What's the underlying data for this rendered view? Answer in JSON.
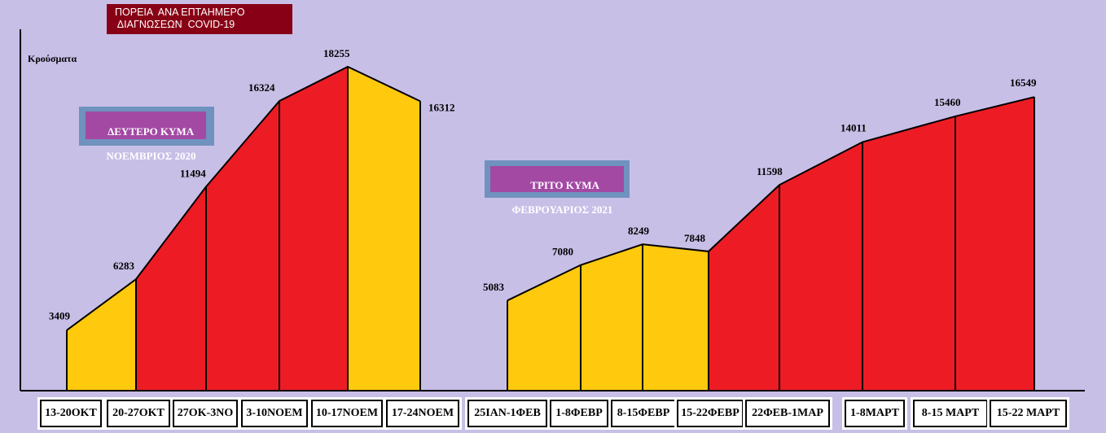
{
  "title_lines": [
    "ΠΟΡΕΙΑ  ΑΝΑ ΕΠΤΑΗΜΕΡΟ",
    " ΔΙΑΓΝΩΣΕΩΝ  COVID-19"
  ],
  "ylabel": "Κρούσματα",
  "annotations": [
    {
      "lines": [
        "ΔΕΥΤΕΡΟ ΚΥΜΑ",
        "ΝΟΕΜΒΡΙΟΣ 2020"
      ]
    },
    {
      "lines": [
        "  ΤΡΙΤΟ ΚΥΜΑ",
        "ΦΕΒΡΟΥΑΡΙΟΣ 2021"
      ]
    }
  ],
  "colors": {
    "background": "#c8bfe7",
    "yellow": "#ffc90e",
    "red": "#ed1c24",
    "title_bg": "#880015",
    "ann_outer": "#7092be",
    "ann_inner": "#a349a4"
  },
  "chart_data": {
    "type": "area",
    "ylabel": "Κρούσματα",
    "categories": [
      "13-20ΟΚΤ",
      "20-27ΟΚΤ",
      "27ΟΚ-3ΝΟ",
      "3-10ΝΟΕΜ",
      "10-17ΝΟΕΜ",
      "17-24ΝΟΕΜ",
      "25ΙΑΝ-1ΦΕΒ",
      "1-8ΦΕΒΡ",
      "8-15ΦΕΒΡ",
      "15-22ΦΕΒΡ",
      "22ΦΕΒ-1ΜΑΡ",
      "1-8ΜΑΡΤ",
      "8-15 ΜΑΡΤ",
      "15-22 ΜΑΡΤ"
    ],
    "values": [
      3409,
      6283,
      11494,
      16324,
      18255,
      16312,
      5083,
      7080,
      8249,
      7848,
      11598,
      14011,
      15460,
      16549
    ],
    "segment_colors": [
      "yellow",
      "red",
      "red",
      "red",
      "yellow",
      "",
      "yellow",
      "yellow",
      "yellow",
      "red",
      "red",
      "red",
      "red",
      ""
    ],
    "groups": [
      [
        0,
        5
      ],
      [
        6,
        13
      ]
    ],
    "ylim": [
      0,
      20000
    ],
    "grid": false
  }
}
